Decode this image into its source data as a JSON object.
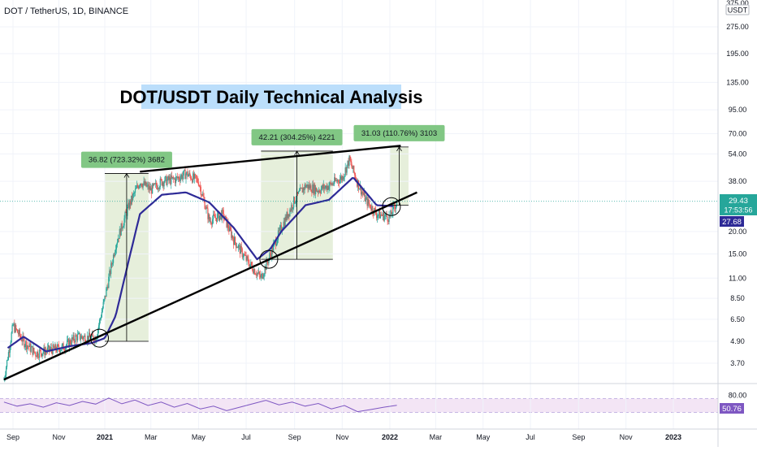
{
  "header": {
    "symbol_line": "DOT / TetherUS, 1D, BINANCE",
    "scale_partial_label": "375.00",
    "currency_label": "USDT"
  },
  "overlay_title": "DOT/USDT Daily Technical Analysis",
  "price_badges": {
    "last_price": "29.43",
    "countdown": "17:53:56",
    "ma_value": "27.68",
    "rsi_value": "50.76"
  },
  "colors": {
    "up_candle": "#26a69a",
    "down_candle": "#ef5350",
    "ma_line": "#2e2a97",
    "rsi_line": "#7e57c2",
    "rsi_band": "#f3e5f5",
    "measure_zone": "#e6efdb",
    "measure_label": "#81c784",
    "title_bg": "#bbdefb",
    "last_price_badge": "#26a69a",
    "ma_badge": "#2e2a97",
    "rsi_badge": "#7e57c2"
  },
  "chart_data": {
    "type": "candlestick",
    "title": "DOT/USDT Daily Technical Analysis",
    "y_scale": "log",
    "price_ticks": [
      "275.00",
      "195.00",
      "135.00",
      "95.00",
      "70.00",
      "54.00",
      "38.00",
      "29.43",
      "20.00",
      "15.00",
      "11.00",
      "8.50",
      "6.50",
      "4.90",
      "3.70"
    ],
    "price_tick_values": [
      275,
      195,
      135,
      95,
      70,
      54,
      38,
      20,
      15,
      11,
      8.5,
      6.5,
      4.9,
      3.7
    ],
    "time_ticks": [
      "Sep",
      "Nov",
      "2021",
      "Mar",
      "May",
      "Jul",
      "Sep",
      "Nov",
      "2022",
      "Mar",
      "May",
      "Jul",
      "Sep",
      "Nov",
      "2023"
    ],
    "price_path": {
      "dates": [
        "2020-08-20",
        "2020-09-01",
        "2020-09-15",
        "2020-10-01",
        "2020-10-20",
        "2020-11-05",
        "2020-11-25",
        "2020-12-20",
        "2021-01-01",
        "2021-01-15",
        "2021-02-01",
        "2021-02-15",
        "2021-03-01",
        "2021-03-15",
        "2021-04-01",
        "2021-04-15",
        "2021-05-01",
        "2021-05-15",
        "2021-06-01",
        "2021-06-15",
        "2021-07-01",
        "2021-07-20",
        "2021-08-01",
        "2021-08-15",
        "2021-09-01",
        "2021-09-15",
        "2021-10-01",
        "2021-10-15",
        "2021-11-01",
        "2021-11-10",
        "2021-11-20",
        "2021-12-01",
        "2021-12-15",
        "2022-01-01",
        "2022-01-10"
      ],
      "close": [
        3.0,
        6.0,
        4.9,
        4.2,
        4.4,
        4.5,
        5.2,
        5.1,
        8.5,
        17,
        28,
        38,
        34,
        38,
        39,
        42,
        38,
        23,
        25,
        18,
        14,
        11,
        15,
        21,
        30,
        36,
        34,
        36,
        40,
        50,
        38,
        30,
        25,
        24,
        29.43
      ]
    },
    "ma_path": {
      "dates": [
        "2020-08-25",
        "2020-09-15",
        "2020-10-15",
        "2020-11-15",
        "2020-12-15",
        "2021-01-01",
        "2021-01-15",
        "2021-02-01",
        "2021-02-15",
        "2021-03-15",
        "2021-04-15",
        "2021-05-15",
        "2021-06-15",
        "2021-07-15",
        "2021-08-01",
        "2021-08-15",
        "2021-09-01",
        "2021-09-15",
        "2021-10-15",
        "2021-11-15",
        "2021-12-15",
        "2022-01-05"
      ],
      "values": [
        4.5,
        5.2,
        4.3,
        4.6,
        4.8,
        5.1,
        6.8,
        14,
        25,
        32,
        33,
        29,
        21,
        14,
        16,
        20,
        24,
        28,
        30,
        40,
        28,
        27.68
      ]
    },
    "measurements": [
      {
        "label": "36.82 (723.32%) 3682",
        "from_date": "2021-01-01",
        "to_date": "2021-02-26",
        "from_price": 4.9,
        "to_price": 42
      },
      {
        "label": "42.21 (304.25%) 4221",
        "from_date": "2021-07-20",
        "to_date": "2021-10-20",
        "from_price": 14,
        "to_price": 56
      },
      {
        "label": "31.03 (110.76%) 3103",
        "from_date": "2022-01-01",
        "to_date": "2022-01-25",
        "from_price": 28,
        "to_price": 59
      }
    ],
    "trendlines": [
      {
        "name": "upper",
        "from_date": "2021-02-15",
        "from_price": 43,
        "to_date": "2022-01-15",
        "to_price": 60
      },
      {
        "name": "lower",
        "from_date": "2020-08-20",
        "from_price": 3.0,
        "to_date": "2022-02-05",
        "to_price": 33
      }
    ],
    "highlight_circles": [
      {
        "date": "2020-12-25",
        "price": 5.1
      },
      {
        "date": "2021-07-30",
        "price": 14
      },
      {
        "date": "2022-01-03",
        "price": 27.5
      }
    ],
    "rsi": {
      "ticks": [
        "80.00"
      ],
      "band": [
        30,
        70
      ],
      "values": [
        60,
        48,
        55,
        45,
        58,
        50,
        62,
        54,
        72,
        55,
        66,
        50,
        60,
        45,
        56,
        40,
        48,
        35,
        45,
        55,
        65,
        52,
        60,
        48,
        56,
        40,
        50,
        32,
        38,
        45,
        50.76
      ]
    }
  }
}
